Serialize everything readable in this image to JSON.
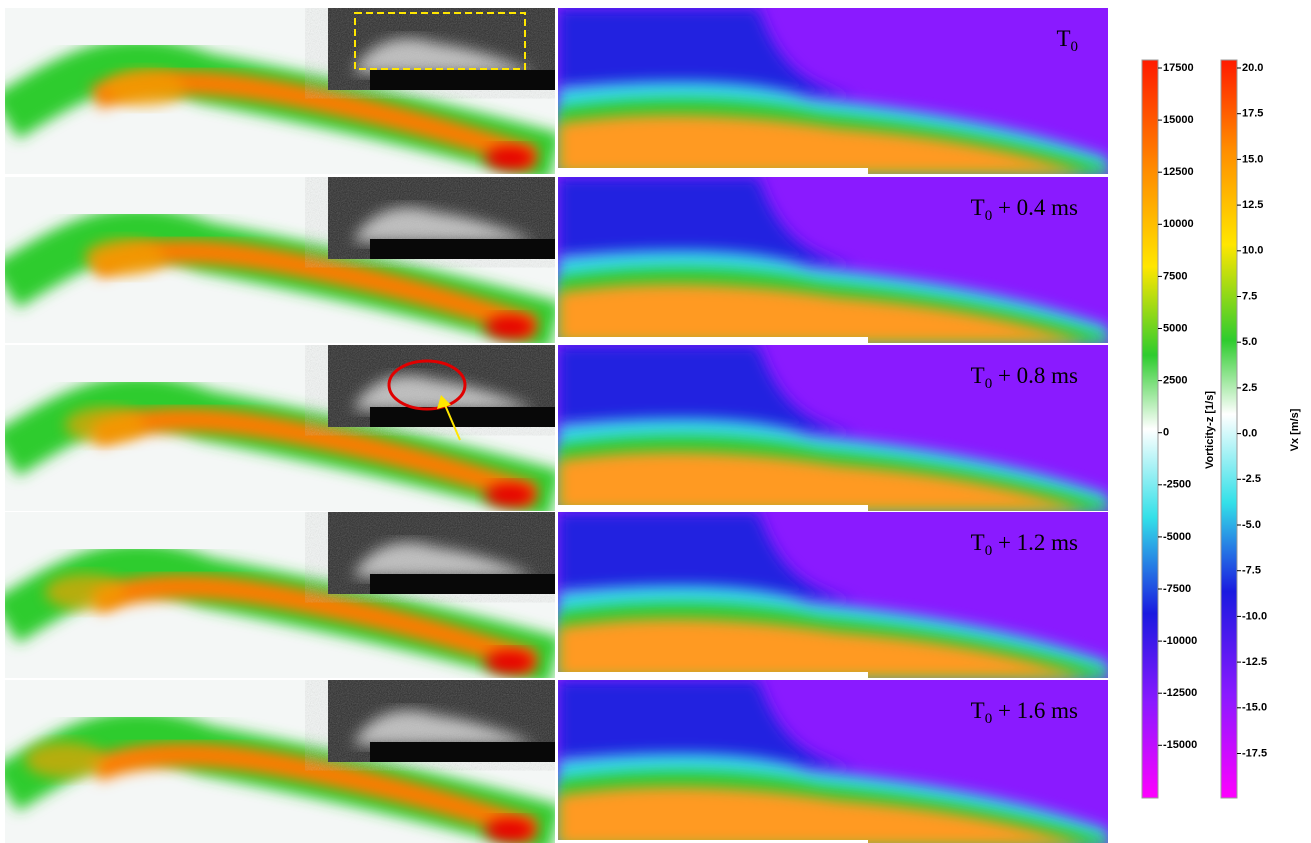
{
  "panels": [
    {
      "label": {
        "base": "T",
        "sub": "0"
      }
    },
    {
      "label": {
        "base": "T",
        "sub": "0",
        "rest": " + 0.4 ms"
      }
    },
    {
      "label": {
        "base": "T",
        "sub": "0",
        "rest": " + 0.8 ms"
      }
    },
    {
      "label": {
        "base": "T",
        "sub": "0",
        "rest": " + 1.2 ms"
      }
    },
    {
      "label": {
        "base": "T",
        "sub": "0",
        "rest": " + 1.6 ms"
      }
    }
  ],
  "colorbars": [
    {
      "title": "Vorticity-z [1/s]",
      "ticks": [
        "17500",
        "15000",
        "12500",
        "10000",
        "7500",
        "5000",
        "2500",
        "0",
        "-2500",
        "-5000",
        "-7500",
        "-10000",
        "-12500",
        "-15000"
      ]
    },
    {
      "title": "Vx [m/s]",
      "ticks": [
        "20.0",
        "17.5",
        "15.0",
        "12.5",
        "10.0",
        "7.5",
        "5.0",
        "2.5",
        "0.0",
        "-2.5",
        "-5.0",
        "-7.5",
        "-10.0",
        "-12.5",
        "-15.0",
        "-17.5"
      ]
    }
  ]
}
